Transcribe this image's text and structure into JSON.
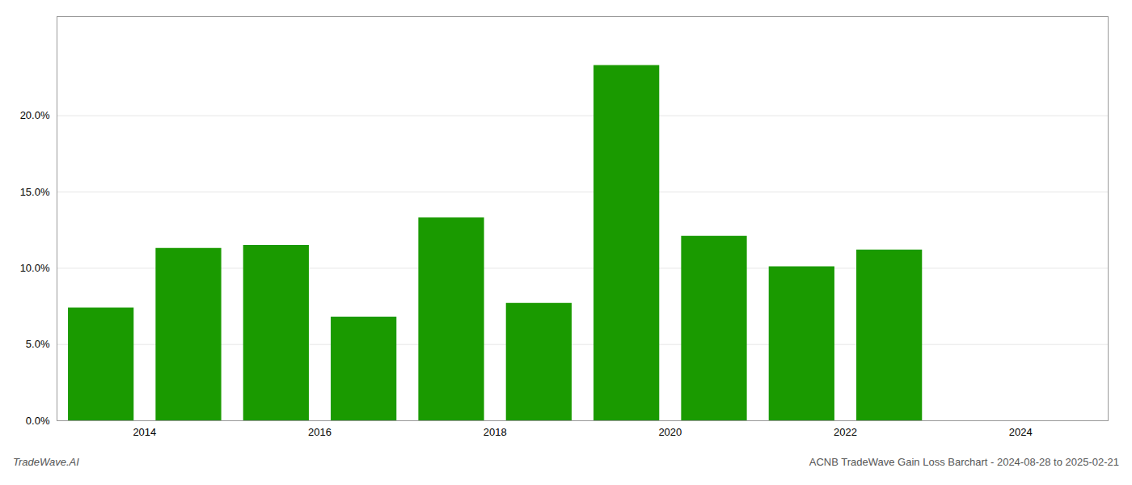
{
  "chart_data": {
    "type": "bar",
    "title": "ACNB TradeWave Gain Loss Barchart - 2024-08-28 to 2025-02-21",
    "annotations": [
      "TradeWave.AI"
    ],
    "x": [
      2013.5,
      2014.5,
      2015.5,
      2016.5,
      2017.5,
      2018.5,
      2019.5,
      2020.5,
      2021.5,
      2022.5,
      2023.5
    ],
    "values": [
      0.074,
      0.113,
      0.115,
      0.068,
      0.133,
      0.077,
      0.233,
      0.121,
      0.101,
      0.112,
      0.0
    ],
    "color": "#1a9a00",
    "xlim": [
      2013.0,
      2025.0
    ],
    "xticks": [
      2014,
      2016,
      2018,
      2020,
      2022,
      2024
    ],
    "ylim": [
      0,
      0.265
    ],
    "yticks": [
      {
        "value": 0.0,
        "label": "0.0%"
      },
      {
        "value": 0.05,
        "label": "5.0%"
      },
      {
        "value": 0.1,
        "label": "10.0%"
      },
      {
        "value": 0.15,
        "label": "15.0%"
      },
      {
        "value": 0.2,
        "label": "20.0%"
      }
    ],
    "grid": true
  }
}
